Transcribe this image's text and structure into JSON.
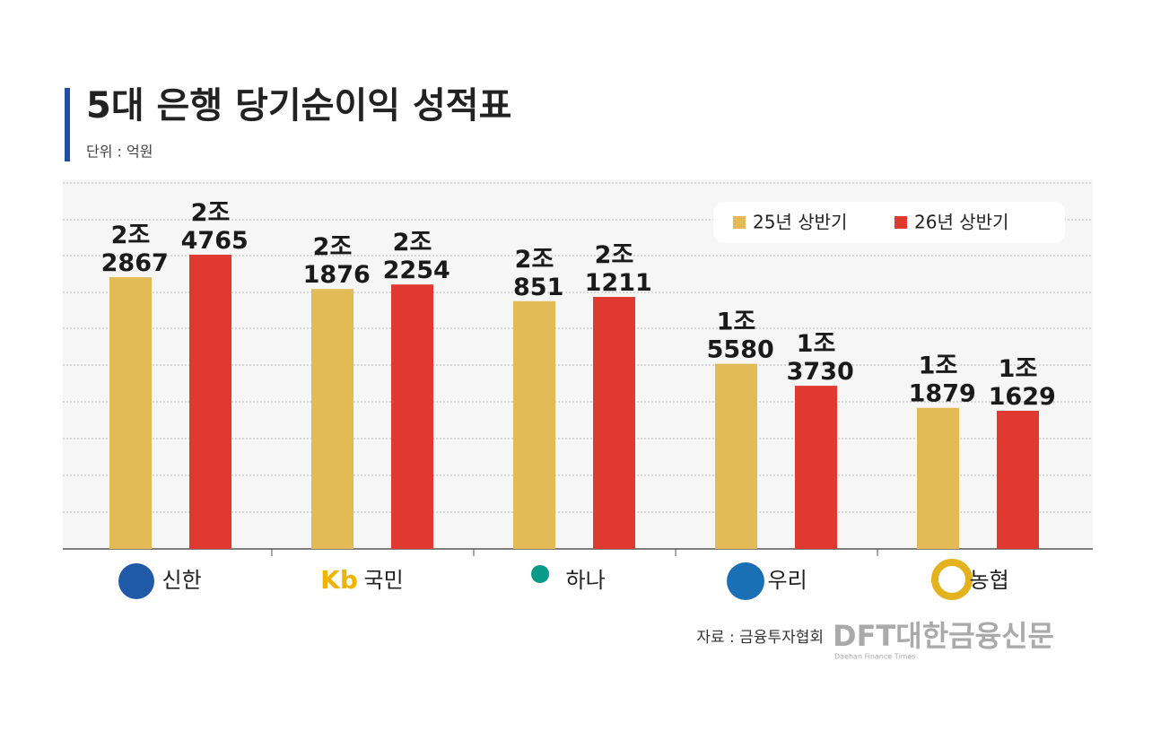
{
  "chart_data": {
    "type": "bar",
    "title": "5대 은행 당기순이익 성적표",
    "subtitle": "단위 : 억원",
    "categories": [
      "신한",
      "국민",
      "하나",
      "우리",
      "농협"
    ],
    "series": [
      {
        "name": "25년 상반기",
        "color": "#e3bb56",
        "values": [
          22867,
          21876,
          20851,
          15580,
          11879
        ],
        "value_labels": [
          "2조 2867",
          "2조 1876",
          "2조 851",
          "1조 5580",
          "1조 1879"
        ]
      },
      {
        "name": "26년 상반기",
        "color": "#e0392f",
        "values": [
          24765,
          22254,
          21211,
          13730,
          11629
        ],
        "value_labels": [
          "2조 4765",
          "2조 2254",
          "2조 1211",
          "1조 3730",
          "1조 1629"
        ]
      }
    ],
    "ylim": [
      0,
      30800
    ],
    "legend": "upper right",
    "source": "자료 : 금융투자협회",
    "brand": "DFT대한금융신문",
    "brand_sub": "Daehan Finance Times"
  }
}
